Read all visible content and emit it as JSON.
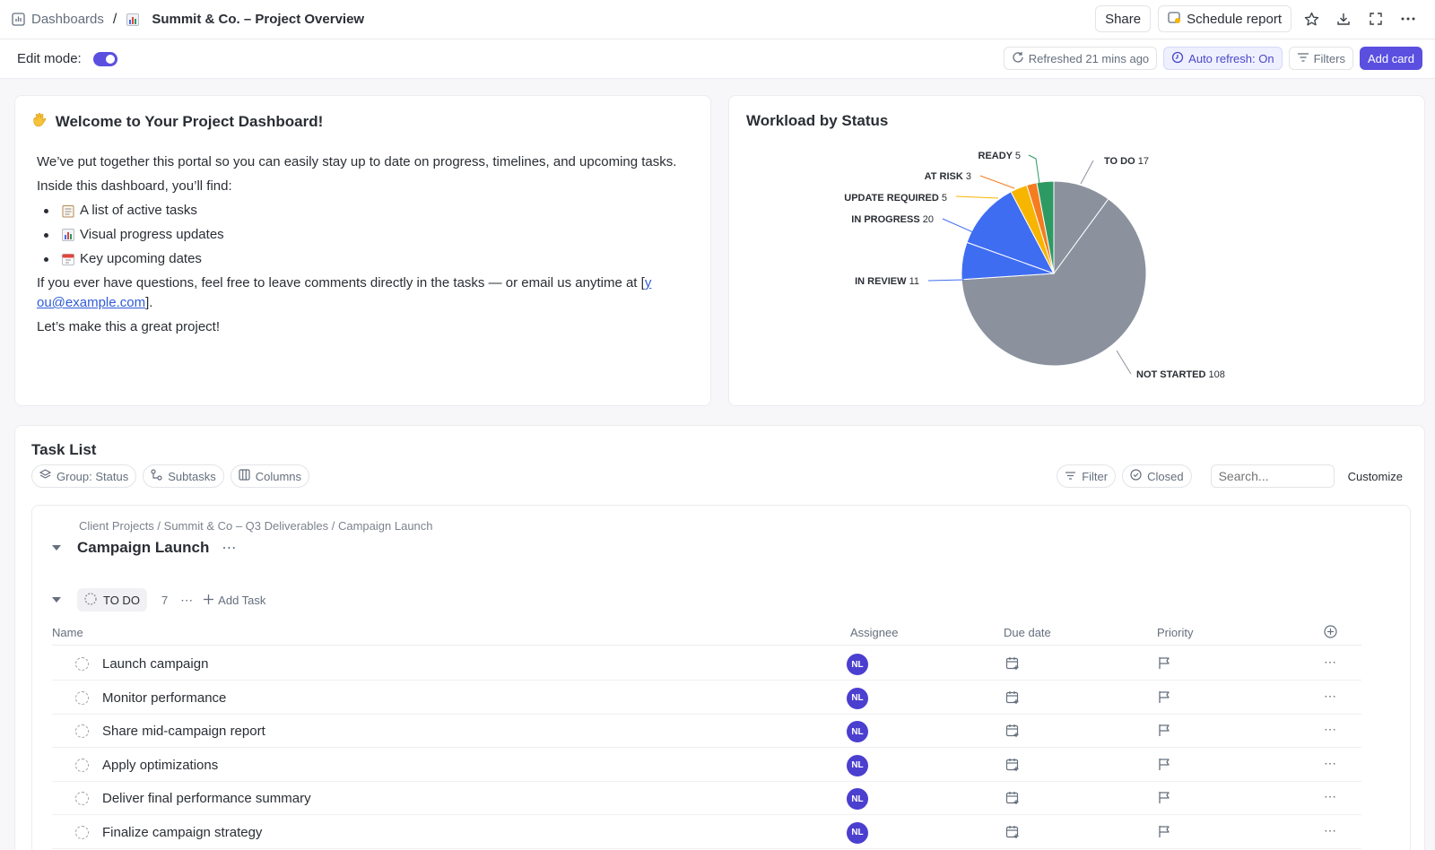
{
  "topbar": {
    "breadcrumb_root": "Dashboards",
    "breadcrumb_sep": "/",
    "title": "Summit & Co. – Project Overview",
    "share_label": "Share",
    "schedule_label": "Schedule report",
    "icons": [
      "dashboard-icon",
      "chart-emoji-icon",
      "schedule-icon",
      "star-icon",
      "download-icon",
      "fullscreen-icon",
      "more-icon"
    ]
  },
  "editbar": {
    "edit_mode_label": "Edit mode:",
    "edit_mode_on": true,
    "refreshed": "Refreshed 21 mins ago",
    "auto_refresh": "Auto refresh: On",
    "filters": "Filters",
    "add_card": "Add card"
  },
  "welcome": {
    "title": "Welcome to Your Project Dashboard!",
    "intro": "We’ve put together this portal so you can easily stay up to date on progress, timelines, and upcoming tasks.",
    "inside": "Inside this dashboard, you’ll find:",
    "items": [
      "A list of active tasks",
      "Visual progress updates",
      "Key upcoming dates"
    ],
    "questions_prefix": "If you ever have questions, feel free to leave comments directly in the tasks — or email us anytime at [",
    "email_a": "y",
    "email_b": "ou@example.com",
    "questions_suffix": "].",
    "closing": "Let’s make this a great project!"
  },
  "workload": {
    "title": "Workload by Status"
  },
  "chart_data": {
    "type": "pie",
    "title": "Workload by Status",
    "slices": [
      {
        "label": "TO DO",
        "value": 17,
        "color": "#8b929e"
      },
      {
        "label": "NOT STARTED",
        "value": 108,
        "color": "#8b929e"
      },
      {
        "label": "IN REVIEW",
        "value": 11,
        "color": "#3f6df2"
      },
      {
        "label": "IN PROGRESS",
        "value": 20,
        "color": "#3f6df2"
      },
      {
        "label": "UPDATE REQUIRED",
        "value": 5,
        "color": "#f7b500"
      },
      {
        "label": "AT RISK",
        "value": 3,
        "color": "#f57c1f"
      },
      {
        "label": "READY",
        "value": 5,
        "color": "#2e9a63"
      }
    ]
  },
  "tasklist": {
    "title": "Task List",
    "group_label": "Group: Status",
    "subtasks_label": "Subtasks",
    "columns_label": "Columns",
    "filter_label": "Filter",
    "closed_label": "Closed",
    "search_placeholder": "Search...",
    "customize_label": "Customize",
    "path": "Client Projects / Summit & Co – Q3 Deliverables / Campaign Launch",
    "list_name": "Campaign Launch",
    "status_name": "TO DO",
    "status_count": "7",
    "add_task": "Add Task",
    "col_name": "Name",
    "col_assignee": "Assignee",
    "col_due": "Due date",
    "col_priority": "Priority",
    "assignee_initials": "NL",
    "tasks": [
      "Launch campaign",
      "Monitor performance",
      "Share mid-campaign report",
      "Apply optimizations",
      "Deliver final performance summary",
      "Finalize campaign strategy"
    ]
  }
}
